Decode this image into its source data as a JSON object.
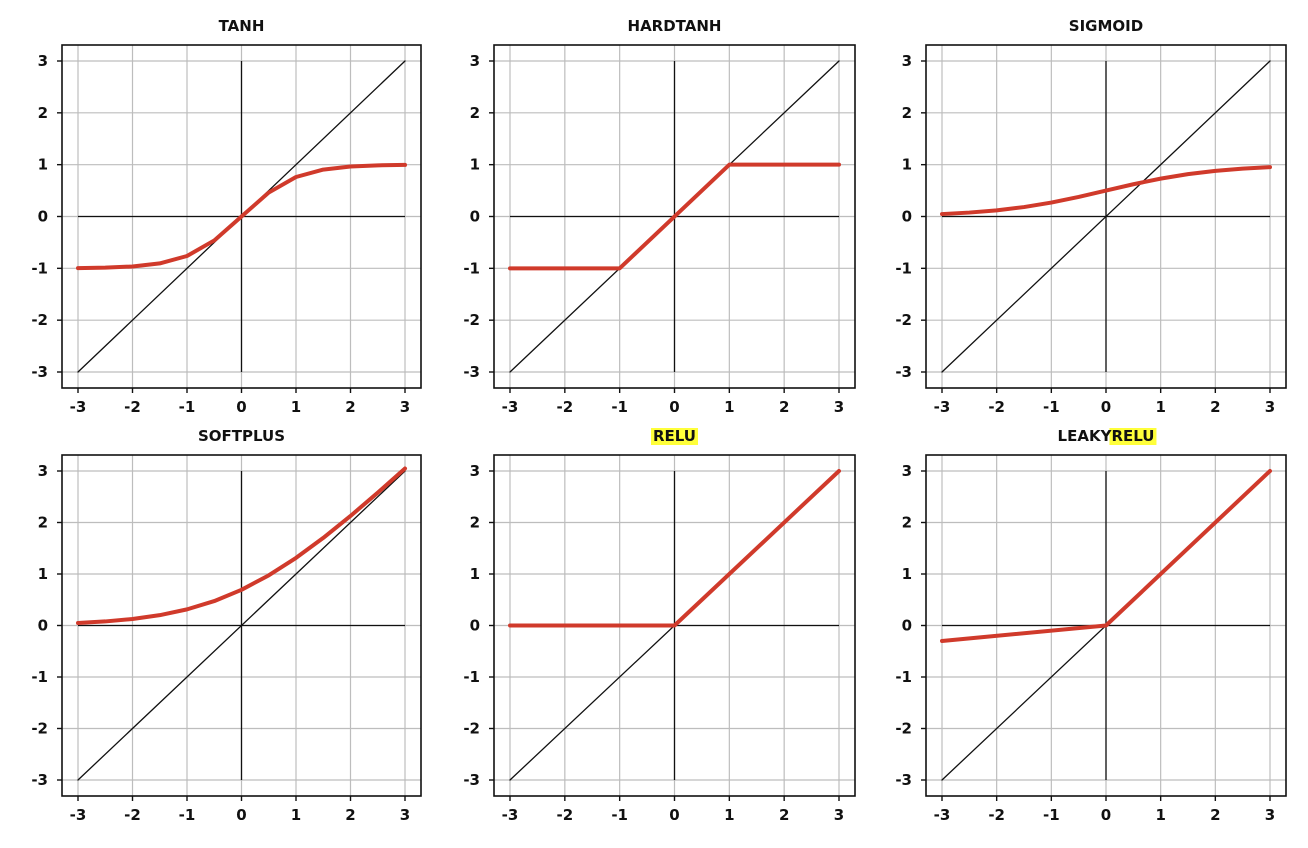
{
  "chart_data": [
    {
      "type": "line",
      "title": "TANH",
      "title_parts": [
        {
          "text": "TANH",
          "highlight": false
        }
      ],
      "xlim": [
        -3,
        3
      ],
      "ylim": [
        -3,
        3
      ],
      "xticks": [
        "-3",
        "-2",
        "-1",
        "0",
        "1",
        "2",
        "3"
      ],
      "yticks": [
        "3",
        "2",
        "1",
        "0",
        "-1",
        "-2",
        "-3"
      ],
      "grid": true,
      "series": [
        {
          "role": "reference",
          "color": "#111111",
          "x": [
            -3,
            3
          ],
          "y": [
            -3,
            3
          ]
        },
        {
          "role": "activation",
          "color": "#d03a2b",
          "x": [
            -3,
            -2.5,
            -2,
            -1.5,
            -1,
            -0.5,
            0,
            0.5,
            1,
            1.5,
            2,
            2.5,
            3
          ],
          "y": [
            -0.995,
            -0.987,
            -0.964,
            -0.905,
            -0.762,
            -0.462,
            0,
            0.462,
            0.762,
            0.905,
            0.964,
            0.987,
            0.995
          ]
        }
      ]
    },
    {
      "type": "line",
      "title": "HARDTANH",
      "title_parts": [
        {
          "text": "HARDTANH",
          "highlight": false
        }
      ],
      "xlim": [
        -3,
        3
      ],
      "ylim": [
        -3,
        3
      ],
      "xticks": [
        "-3",
        "-2",
        "-1",
        "0",
        "1",
        "2",
        "3"
      ],
      "yticks": [
        "3",
        "2",
        "1",
        "0",
        "-1",
        "-2",
        "-3"
      ],
      "grid": true,
      "series": [
        {
          "role": "reference",
          "color": "#111111",
          "x": [
            -3,
            3
          ],
          "y": [
            -3,
            3
          ]
        },
        {
          "role": "activation",
          "color": "#d03a2b",
          "x": [
            -3,
            -1,
            1,
            3
          ],
          "y": [
            -1,
            -1,
            1,
            1
          ]
        }
      ]
    },
    {
      "type": "line",
      "title": "SIGMOID",
      "title_parts": [
        {
          "text": "SIGMOID",
          "highlight": false
        }
      ],
      "xlim": [
        -3,
        3
      ],
      "ylim": [
        -3,
        3
      ],
      "xticks": [
        "-3",
        "-2",
        "-1",
        "0",
        "1",
        "2",
        "3"
      ],
      "yticks": [
        "3",
        "2",
        "1",
        "0",
        "-1",
        "-2",
        "-3"
      ],
      "grid": true,
      "series": [
        {
          "role": "reference",
          "color": "#111111",
          "x": [
            -3,
            3
          ],
          "y": [
            -3,
            3
          ]
        },
        {
          "role": "activation",
          "color": "#d03a2b",
          "x": [
            -3,
            -2.5,
            -2,
            -1.5,
            -1,
            -0.5,
            0,
            0.5,
            1,
            1.5,
            2,
            2.5,
            3
          ],
          "y": [
            0.047,
            0.076,
            0.119,
            0.182,
            0.269,
            0.378,
            0.5,
            0.622,
            0.731,
            0.818,
            0.881,
            0.924,
            0.953
          ]
        }
      ]
    },
    {
      "type": "line",
      "title": "SOFTPLUS",
      "title_parts": [
        {
          "text": "SOFTPLUS",
          "highlight": false
        }
      ],
      "xlim": [
        -3,
        3
      ],
      "ylim": [
        -3,
        3
      ],
      "xticks": [
        "-3",
        "-2",
        "-1",
        "0",
        "1",
        "2",
        "3"
      ],
      "yticks": [
        "3",
        "2",
        "1",
        "0",
        "-1",
        "-2",
        "-3"
      ],
      "grid": true,
      "series": [
        {
          "role": "reference",
          "color": "#111111",
          "x": [
            -3,
            3
          ],
          "y": [
            -3,
            3
          ]
        },
        {
          "role": "activation",
          "color": "#d03a2b",
          "x": [
            -3,
            -2.5,
            -2,
            -1.5,
            -1,
            -0.5,
            0,
            0.5,
            1,
            1.5,
            2,
            2.5,
            3
          ],
          "y": [
            0.049,
            0.079,
            0.127,
            0.201,
            0.313,
            0.474,
            0.693,
            0.974,
            1.313,
            1.701,
            2.127,
            2.579,
            3.049
          ]
        }
      ]
    },
    {
      "type": "line",
      "title": "RELU",
      "title_parts": [
        {
          "text": "RELU",
          "highlight": true
        }
      ],
      "xlim": [
        -3,
        3
      ],
      "ylim": [
        -3,
        3
      ],
      "xticks": [
        "-3",
        "-2",
        "-1",
        "0",
        "1",
        "2",
        "3"
      ],
      "yticks": [
        "3",
        "2",
        "1",
        "0",
        "-1",
        "-2",
        "-3"
      ],
      "grid": true,
      "series": [
        {
          "role": "reference",
          "color": "#111111",
          "x": [
            -3,
            3
          ],
          "y": [
            -3,
            3
          ]
        },
        {
          "role": "activation",
          "color": "#d03a2b",
          "x": [
            -3,
            0,
            3
          ],
          "y": [
            0,
            0,
            3
          ]
        }
      ]
    },
    {
      "type": "line",
      "title": "LEAKYRELU",
      "title_parts": [
        {
          "text": "LEAKY",
          "highlight": false
        },
        {
          "text": "RELU",
          "highlight": true
        }
      ],
      "xlim": [
        -3,
        3
      ],
      "ylim": [
        -3,
        3
      ],
      "xticks": [
        "-3",
        "-2",
        "-1",
        "0",
        "1",
        "2",
        "3"
      ],
      "yticks": [
        "3",
        "2",
        "1",
        "0",
        "-1",
        "-2",
        "-3"
      ],
      "grid": true,
      "series": [
        {
          "role": "reference",
          "color": "#111111",
          "x": [
            -3,
            3
          ],
          "y": [
            -3,
            3
          ]
        },
        {
          "role": "activation",
          "color": "#d03a2b",
          "x": [
            -3,
            0,
            3
          ],
          "y": [
            -0.3,
            0,
            3
          ]
        }
      ]
    }
  ],
  "colors": {
    "curve": "#d03a2b",
    "reference": "#111111",
    "grid": "#bdbdbd",
    "highlight": "#ffff3a",
    "frame": "#111111"
  }
}
